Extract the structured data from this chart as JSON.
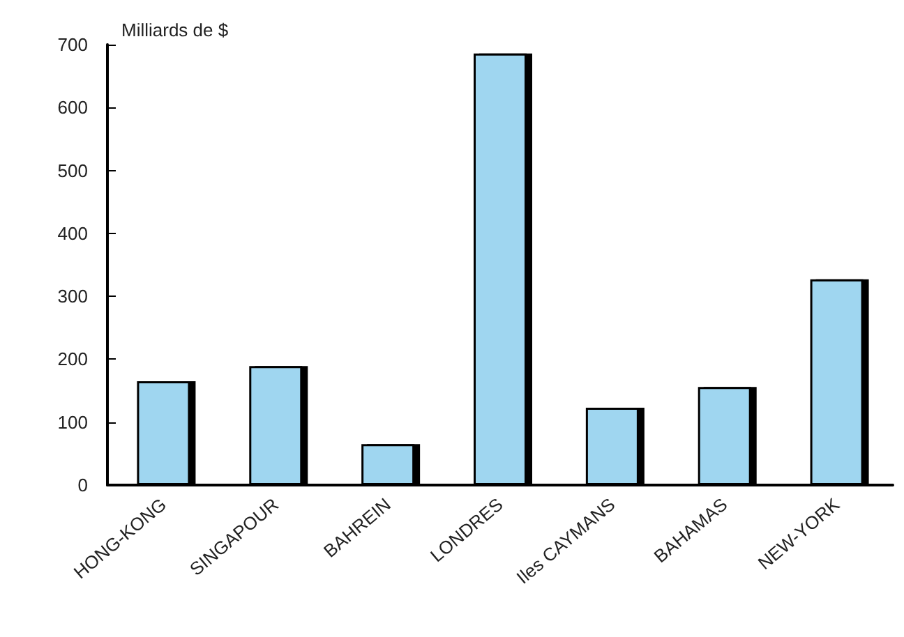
{
  "chart_data": {
    "type": "bar",
    "ylabel": "Milliards de $",
    "categories": [
      "HONG-KONG",
      "SINGAPOUR",
      "BAHREIN",
      "LONDRES",
      "Iles CAYMANS",
      "BAHAMAS",
      "NEW-YORK"
    ],
    "values": [
      165,
      189,
      65,
      686,
      123,
      156,
      327
    ],
    "color": "#9fd6f0",
    "ylim": [
      0,
      700
    ],
    "yticks": [
      0,
      100,
      200,
      300,
      400,
      500,
      600,
      700
    ]
  }
}
